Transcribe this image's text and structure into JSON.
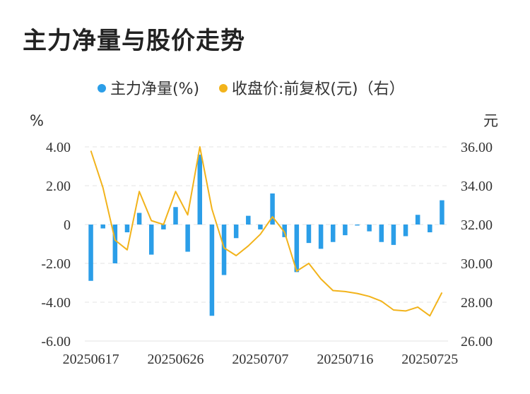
{
  "title": "主力净量与股价走势",
  "chart_data": {
    "type": "bar+line",
    "legend": [
      {
        "label": "主力净量(%)",
        "color": "#2b9ee8"
      },
      {
        "label": "收盘价:前复权(元)（右）",
        "color": "#f2b31b"
      }
    ],
    "left_unit": "%",
    "right_unit": "元",
    "left_ticks": [
      "4.00",
      "2.00",
      "0",
      "-2.00",
      "-4.00",
      "-6.00"
    ],
    "right_ticks": [
      "36.00",
      "34.00",
      "32.00",
      "30.00",
      "28.00",
      "26.00"
    ],
    "left_range": [
      -6,
      4
    ],
    "right_range": [
      26,
      36
    ],
    "x_tick_labels": [
      "20250617",
      "20250626",
      "20250707",
      "20250716",
      "20250725"
    ],
    "x_tick_indices": [
      0,
      7,
      14,
      21,
      28
    ],
    "categories_count": 30,
    "series": [
      {
        "name": "主力净量(%)",
        "type": "bar",
        "values": [
          -2.9,
          -0.2,
          -2.0,
          -0.4,
          0.6,
          -1.55,
          -0.25,
          0.9,
          -1.4,
          3.6,
          -4.7,
          -2.6,
          -0.7,
          0.45,
          -0.25,
          1.6,
          -0.65,
          -2.45,
          -0.95,
          -1.25,
          -0.9,
          -0.55,
          -0.05,
          -0.35,
          -0.9,
          -1.05,
          -0.6,
          0.5,
          -0.4,
          1.25
        ]
      },
      {
        "name": "收盘价:前复权(元)（右）",
        "type": "line",
        "values": [
          35.8,
          33.9,
          31.2,
          30.7,
          33.7,
          32.2,
          32.0,
          33.7,
          32.5,
          36.0,
          32.8,
          30.8,
          30.4,
          30.9,
          31.5,
          32.4,
          31.6,
          29.6,
          30.0,
          29.2,
          28.6,
          28.55,
          28.45,
          28.3,
          28.05,
          27.6,
          27.55,
          27.75,
          27.3,
          28.5
        ]
      }
    ],
    "grid": true
  }
}
